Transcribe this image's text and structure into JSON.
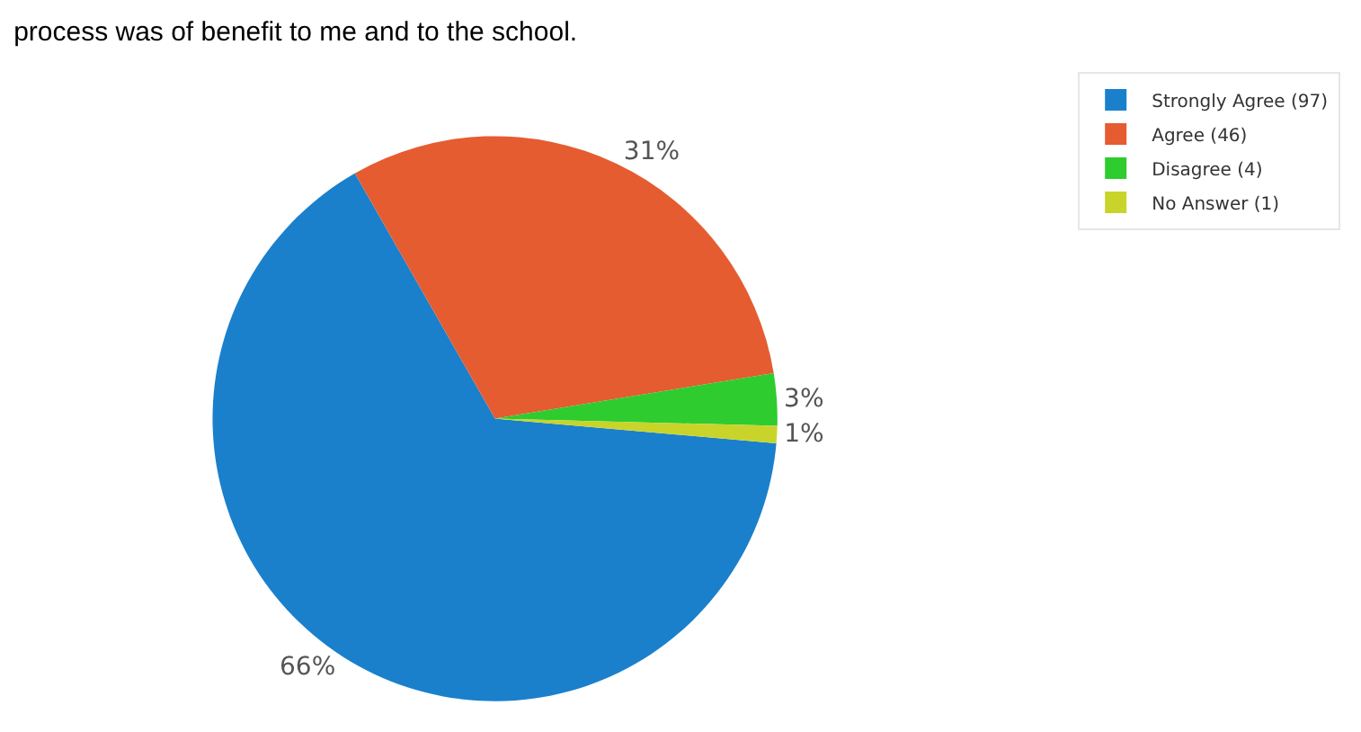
{
  "chart_data": {
    "type": "pie",
    "title": "process was of benefit to me and to the school.",
    "categories": [
      "Strongly Agree (97)",
      "Agree (46)",
      "Disagree (4)",
      "No Answer (1)"
    ],
    "values": [
      66,
      31,
      3,
      1
    ],
    "value_labels": [
      "66%",
      "31%",
      "3%",
      "1%"
    ],
    "colors": [
      "#1a80cc",
      "#e55c30",
      "#2ecc2e",
      "#c9d42a"
    ],
    "legend": "top right"
  }
}
